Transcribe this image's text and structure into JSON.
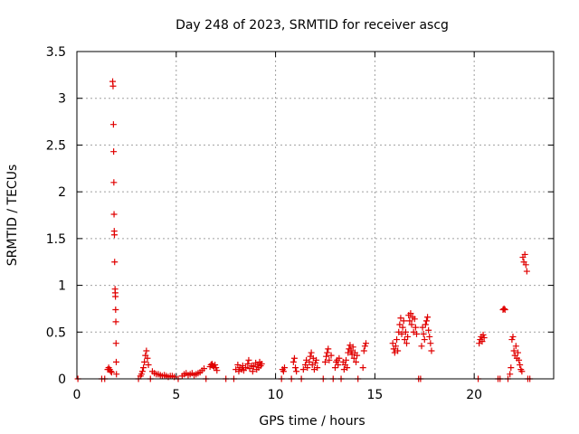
{
  "chart_data": {
    "type": "scatter",
    "title": "Day 248 of 2023, SRMTID for receiver ascg",
    "xlabel": "GPS time / hours",
    "ylabel": "SRMTID / TECUs",
    "xlim": [
      0,
      24
    ],
    "ylim": [
      0,
      3.5
    ],
    "xticks": [
      0,
      5,
      10,
      15,
      20
    ],
    "yticks": [
      0,
      0.5,
      1,
      1.5,
      2,
      2.5,
      3,
      3.5
    ],
    "grid": true,
    "marker": "+",
    "color": "#e00000",
    "series": [
      {
        "name": "SRMTID",
        "points": [
          [
            0.05,
            0.0
          ],
          [
            1.25,
            0.0
          ],
          [
            1.4,
            0.0
          ],
          [
            1.55,
            0.1
          ],
          [
            1.6,
            0.12
          ],
          [
            1.65,
            0.1
          ],
          [
            1.7,
            0.08
          ],
          [
            1.75,
            0.07
          ],
          [
            1.8,
            3.18
          ],
          [
            1.82,
            3.13
          ],
          [
            1.84,
            2.72
          ],
          [
            1.85,
            2.43
          ],
          [
            1.86,
            2.1
          ],
          [
            1.87,
            1.76
          ],
          [
            1.88,
            1.58
          ],
          [
            1.89,
            1.54
          ],
          [
            1.9,
            1.25
          ],
          [
            1.92,
            0.96
          ],
          [
            1.93,
            0.92
          ],
          [
            1.94,
            0.88
          ],
          [
            1.95,
            0.74
          ],
          [
            1.96,
            0.61
          ],
          [
            1.97,
            0.38
          ],
          [
            1.98,
            0.18
          ],
          [
            1.99,
            0.05
          ],
          [
            3.1,
            0.0
          ],
          [
            3.2,
            0.03
          ],
          [
            3.25,
            0.05
          ],
          [
            3.3,
            0.08
          ],
          [
            3.35,
            0.12
          ],
          [
            3.4,
            0.18
          ],
          [
            3.45,
            0.25
          ],
          [
            3.5,
            0.3
          ],
          [
            3.55,
            0.22
          ],
          [
            3.6,
            0.15
          ],
          [
            3.7,
            0.0
          ],
          [
            3.8,
            0.08
          ],
          [
            3.9,
            0.06
          ],
          [
            4.0,
            0.05
          ],
          [
            4.1,
            0.05
          ],
          [
            4.2,
            0.04
          ],
          [
            4.3,
            0.03
          ],
          [
            4.4,
            0.04
          ],
          [
            4.5,
            0.03
          ],
          [
            4.6,
            0.02
          ],
          [
            4.7,
            0.03
          ],
          [
            4.8,
            0.03
          ],
          [
            4.9,
            0.02
          ],
          [
            5.1,
            0.0
          ],
          [
            5.3,
            0.03
          ],
          [
            5.4,
            0.05
          ],
          [
            5.5,
            0.06
          ],
          [
            5.6,
            0.04
          ],
          [
            5.7,
            0.05
          ],
          [
            5.8,
            0.06
          ],
          [
            5.9,
            0.04
          ],
          [
            6.0,
            0.05
          ],
          [
            6.1,
            0.06
          ],
          [
            6.2,
            0.07
          ],
          [
            6.3,
            0.09
          ],
          [
            6.4,
            0.11
          ],
          [
            6.5,
            0.0
          ],
          [
            6.7,
            0.13
          ],
          [
            6.75,
            0.15
          ],
          [
            6.8,
            0.16
          ],
          [
            6.85,
            0.14
          ],
          [
            6.9,
            0.12
          ],
          [
            6.95,
            0.15
          ],
          [
            7.0,
            0.12
          ],
          [
            7.05,
            0.09
          ],
          [
            7.5,
            0.0
          ],
          [
            7.9,
            0.0
          ],
          [
            8.0,
            0.1
          ],
          [
            8.1,
            0.15
          ],
          [
            8.15,
            0.08
          ],
          [
            8.2,
            0.12
          ],
          [
            8.3,
            0.1
          ],
          [
            8.35,
            0.14
          ],
          [
            8.4,
            0.09
          ],
          [
            8.5,
            0.12
          ],
          [
            8.6,
            0.16
          ],
          [
            8.65,
            0.2
          ],
          [
            8.7,
            0.11
          ],
          [
            8.8,
            0.14
          ],
          [
            8.85,
            0.08
          ],
          [
            8.9,
            0.13
          ],
          [
            9.0,
            0.17
          ],
          [
            9.05,
            0.1
          ],
          [
            9.1,
            0.15
          ],
          [
            9.15,
            0.12
          ],
          [
            9.2,
            0.18
          ],
          [
            9.25,
            0.14
          ],
          [
            9.3,
            0.16
          ],
          [
            10.3,
            0.0
          ],
          [
            10.35,
            0.1
          ],
          [
            10.4,
            0.08
          ],
          [
            10.45,
            0.12
          ],
          [
            10.8,
            0.0
          ],
          [
            10.9,
            0.18
          ],
          [
            10.95,
            0.22
          ],
          [
            11.0,
            0.12
          ],
          [
            11.05,
            0.08
          ],
          [
            11.3,
            0.0
          ],
          [
            11.4,
            0.1
          ],
          [
            11.5,
            0.15
          ],
          [
            11.55,
            0.2
          ],
          [
            11.6,
            0.12
          ],
          [
            11.7,
            0.18
          ],
          [
            11.75,
            0.24
          ],
          [
            11.8,
            0.28
          ],
          [
            11.85,
            0.15
          ],
          [
            11.9,
            0.22
          ],
          [
            11.95,
            0.1
          ],
          [
            12.0,
            0.17
          ],
          [
            12.05,
            0.2
          ],
          [
            12.1,
            0.12
          ],
          [
            12.4,
            0.0
          ],
          [
            12.5,
            0.18
          ],
          [
            12.55,
            0.24
          ],
          [
            12.6,
            0.28
          ],
          [
            12.65,
            0.32
          ],
          [
            12.7,
            0.2
          ],
          [
            12.8,
            0.25
          ],
          [
            12.9,
            0.0
          ],
          [
            13.0,
            0.12
          ],
          [
            13.05,
            0.18
          ],
          [
            13.1,
            0.2
          ],
          [
            13.15,
            0.15
          ],
          [
            13.2,
            0.22
          ],
          [
            13.3,
            0.0
          ],
          [
            13.4,
            0.18
          ],
          [
            13.45,
            0.1
          ],
          [
            13.5,
            0.15
          ],
          [
            13.55,
            0.2
          ],
          [
            13.6,
            0.12
          ],
          [
            13.65,
            0.28
          ],
          [
            13.7,
            0.32
          ],
          [
            13.75,
            0.36
          ],
          [
            13.8,
            0.3
          ],
          [
            13.85,
            0.26
          ],
          [
            13.9,
            0.34
          ],
          [
            13.95,
            0.22
          ],
          [
            14.0,
            0.28
          ],
          [
            14.05,
            0.18
          ],
          [
            14.1,
            0.25
          ],
          [
            14.15,
            0.0
          ],
          [
            14.4,
            0.12
          ],
          [
            14.45,
            0.3
          ],
          [
            14.5,
            0.35
          ],
          [
            14.55,
            0.38
          ],
          [
            15.9,
            0.38
          ],
          [
            15.95,
            0.32
          ],
          [
            16.0,
            0.28
          ],
          [
            16.05,
            0.35
          ],
          [
            16.1,
            0.42
          ],
          [
            16.15,
            0.3
          ],
          [
            16.2,
            0.5
          ],
          [
            16.25,
            0.58
          ],
          [
            16.3,
            0.65
          ],
          [
            16.35,
            0.48
          ],
          [
            16.4,
            0.55
          ],
          [
            16.45,
            0.62
          ],
          [
            16.5,
            0.42
          ],
          [
            16.55,
            0.5
          ],
          [
            16.6,
            0.38
          ],
          [
            16.65,
            0.45
          ],
          [
            16.7,
            0.68
          ],
          [
            16.75,
            0.62
          ],
          [
            16.8,
            0.7
          ],
          [
            16.85,
            0.58
          ],
          [
            16.9,
            0.66
          ],
          [
            16.95,
            0.5
          ],
          [
            17.0,
            0.64
          ],
          [
            17.05,
            0.55
          ],
          [
            17.1,
            0.48
          ],
          [
            17.2,
            0.0
          ],
          [
            17.3,
            0.0
          ],
          [
            17.35,
            0.35
          ],
          [
            17.4,
            0.55
          ],
          [
            17.45,
            0.48
          ],
          [
            17.5,
            0.42
          ],
          [
            17.55,
            0.58
          ],
          [
            17.6,
            0.62
          ],
          [
            17.65,
            0.66
          ],
          [
            17.7,
            0.52
          ],
          [
            17.75,
            0.45
          ],
          [
            17.8,
            0.38
          ],
          [
            17.85,
            0.3
          ],
          [
            20.2,
            0.0
          ],
          [
            20.25,
            0.38
          ],
          [
            20.3,
            0.42
          ],
          [
            20.35,
            0.45
          ],
          [
            20.4,
            0.4
          ],
          [
            20.45,
            0.47
          ],
          [
            20.5,
            0.44
          ],
          [
            21.2,
            0.0
          ],
          [
            21.3,
            0.0
          ],
          [
            21.45,
            0.74
          ],
          [
            21.5,
            0.75
          ],
          [
            21.55,
            0.74
          ],
          [
            21.7,
            0.0
          ],
          [
            21.8,
            0.05
          ],
          [
            21.85,
            0.12
          ],
          [
            21.9,
            0.42
          ],
          [
            21.95,
            0.45
          ],
          [
            22.0,
            0.3
          ],
          [
            22.05,
            0.25
          ],
          [
            22.1,
            0.35
          ],
          [
            22.15,
            0.22
          ],
          [
            22.2,
            0.28
          ],
          [
            22.25,
            0.2
          ],
          [
            22.3,
            0.15
          ],
          [
            22.35,
            0.1
          ],
          [
            22.4,
            0.08
          ],
          [
            22.45,
            1.3
          ],
          [
            22.5,
            1.25
          ],
          [
            22.55,
            1.33
          ],
          [
            22.6,
            1.22
          ],
          [
            22.65,
            1.15
          ],
          [
            22.7,
            0.0
          ],
          [
            22.8,
            0.0
          ]
        ]
      }
    ]
  }
}
